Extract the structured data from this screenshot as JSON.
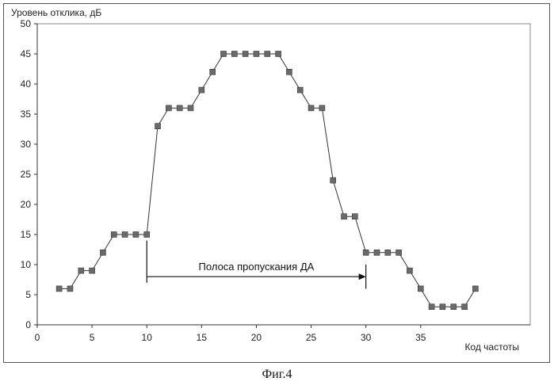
{
  "chart_data": {
    "type": "line",
    "ylabel": "Уровень отклика, дБ",
    "xlabel": "Код частоты",
    "xlim": [
      0,
      45
    ],
    "ylim": [
      0,
      50
    ],
    "x_ticks": [
      0,
      5,
      10,
      15,
      20,
      25,
      30,
      35
    ],
    "y_ticks": [
      0,
      5,
      10,
      15,
      20,
      25,
      30,
      35,
      40,
      45,
      50
    ],
    "grid": "none",
    "legend": "none",
    "series": [
      {
        "marker": "square",
        "color": "#6a6a6a",
        "x": [
          2,
          3,
          4,
          5,
          6,
          7,
          8,
          9,
          10,
          11,
          12,
          13,
          14,
          15,
          16,
          17,
          18,
          19,
          20,
          21,
          22,
          23,
          24,
          25,
          26,
          27,
          28,
          29,
          30,
          31,
          32,
          33,
          34,
          35,
          36,
          37,
          38,
          39,
          40
        ],
        "y": [
          6,
          6,
          9,
          9,
          12,
          15,
          15,
          15,
          15,
          33,
          36,
          36,
          36,
          39,
          42,
          45,
          45,
          45,
          45,
          45,
          45,
          42,
          39,
          36,
          36,
          24,
          18,
          18,
          12,
          12,
          12,
          12,
          9,
          6,
          3,
          3,
          3,
          3,
          6
        ]
      }
    ],
    "annotation": {
      "text": "Полоса пропускания ДА",
      "x_start": 10,
      "x_end": 30,
      "y": 8
    }
  },
  "caption": "Фиг.4"
}
